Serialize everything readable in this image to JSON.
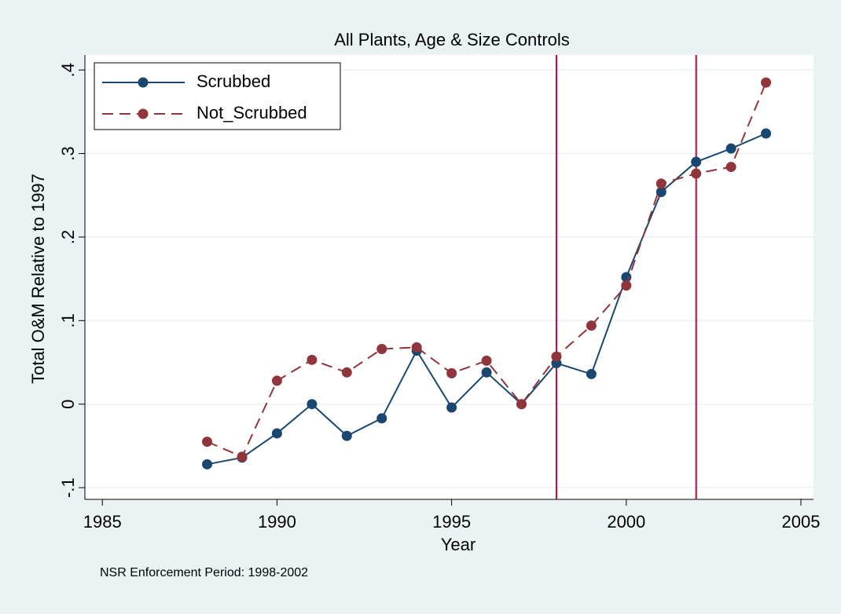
{
  "chart_data": {
    "type": "line",
    "title": "All Plants, Age & Size Controls",
    "x_label": "Year",
    "y_label": "Total O&M Relative to 1997",
    "note": "NSR Enforcement Period: 1998-2002",
    "x": [
      1988,
      1989,
      1990,
      1991,
      1992,
      1993,
      1994,
      1995,
      1996,
      1997,
      1998,
      1999,
      2000,
      2001,
      2002,
      2003,
      2004
    ],
    "series": [
      {
        "name": "Scrubbed",
        "color": "#1a476f",
        "dash": "solid",
        "values": [
          -0.072,
          -0.064,
          -0.035,
          0,
          -0.038,
          -0.017,
          0.064,
          -0.004,
          0.038,
          0,
          0.049,
          0.036,
          0.152,
          0.254,
          0.29,
          0.306,
          0.324
        ]
      },
      {
        "name": "Not_Scrubbed",
        "color": "#90353b",
        "dash": "dashed",
        "values": [
          -0.045,
          -0.063,
          0.028,
          0.053,
          0.038,
          0.066,
          0.068,
          0.037,
          0.052,
          0,
          0.057,
          0.094,
          0.142,
          0.264,
          0.276,
          0.284,
          0.385
        ]
      }
    ],
    "vlines": [
      1998,
      2002
    ],
    "vline_color": "#c10534",
    "xlim": [
      1984.5,
      2005.36
    ],
    "xticks": [
      1985,
      1990,
      1995,
      2000,
      2005
    ],
    "ylim": [
      -0.114,
      0.418
    ],
    "yticks": [
      {
        "value": -0.1,
        "label": "-.1"
      },
      0,
      {
        "value": 0.1,
        "label": ".1"
      },
      {
        "value": 0.2,
        "label": ".2"
      },
      {
        "value": 0.3,
        "label": ".3"
      },
      {
        "value": 0.4,
        "label": ".4"
      }
    ],
    "grid": true,
    "legend": "top-left"
  }
}
